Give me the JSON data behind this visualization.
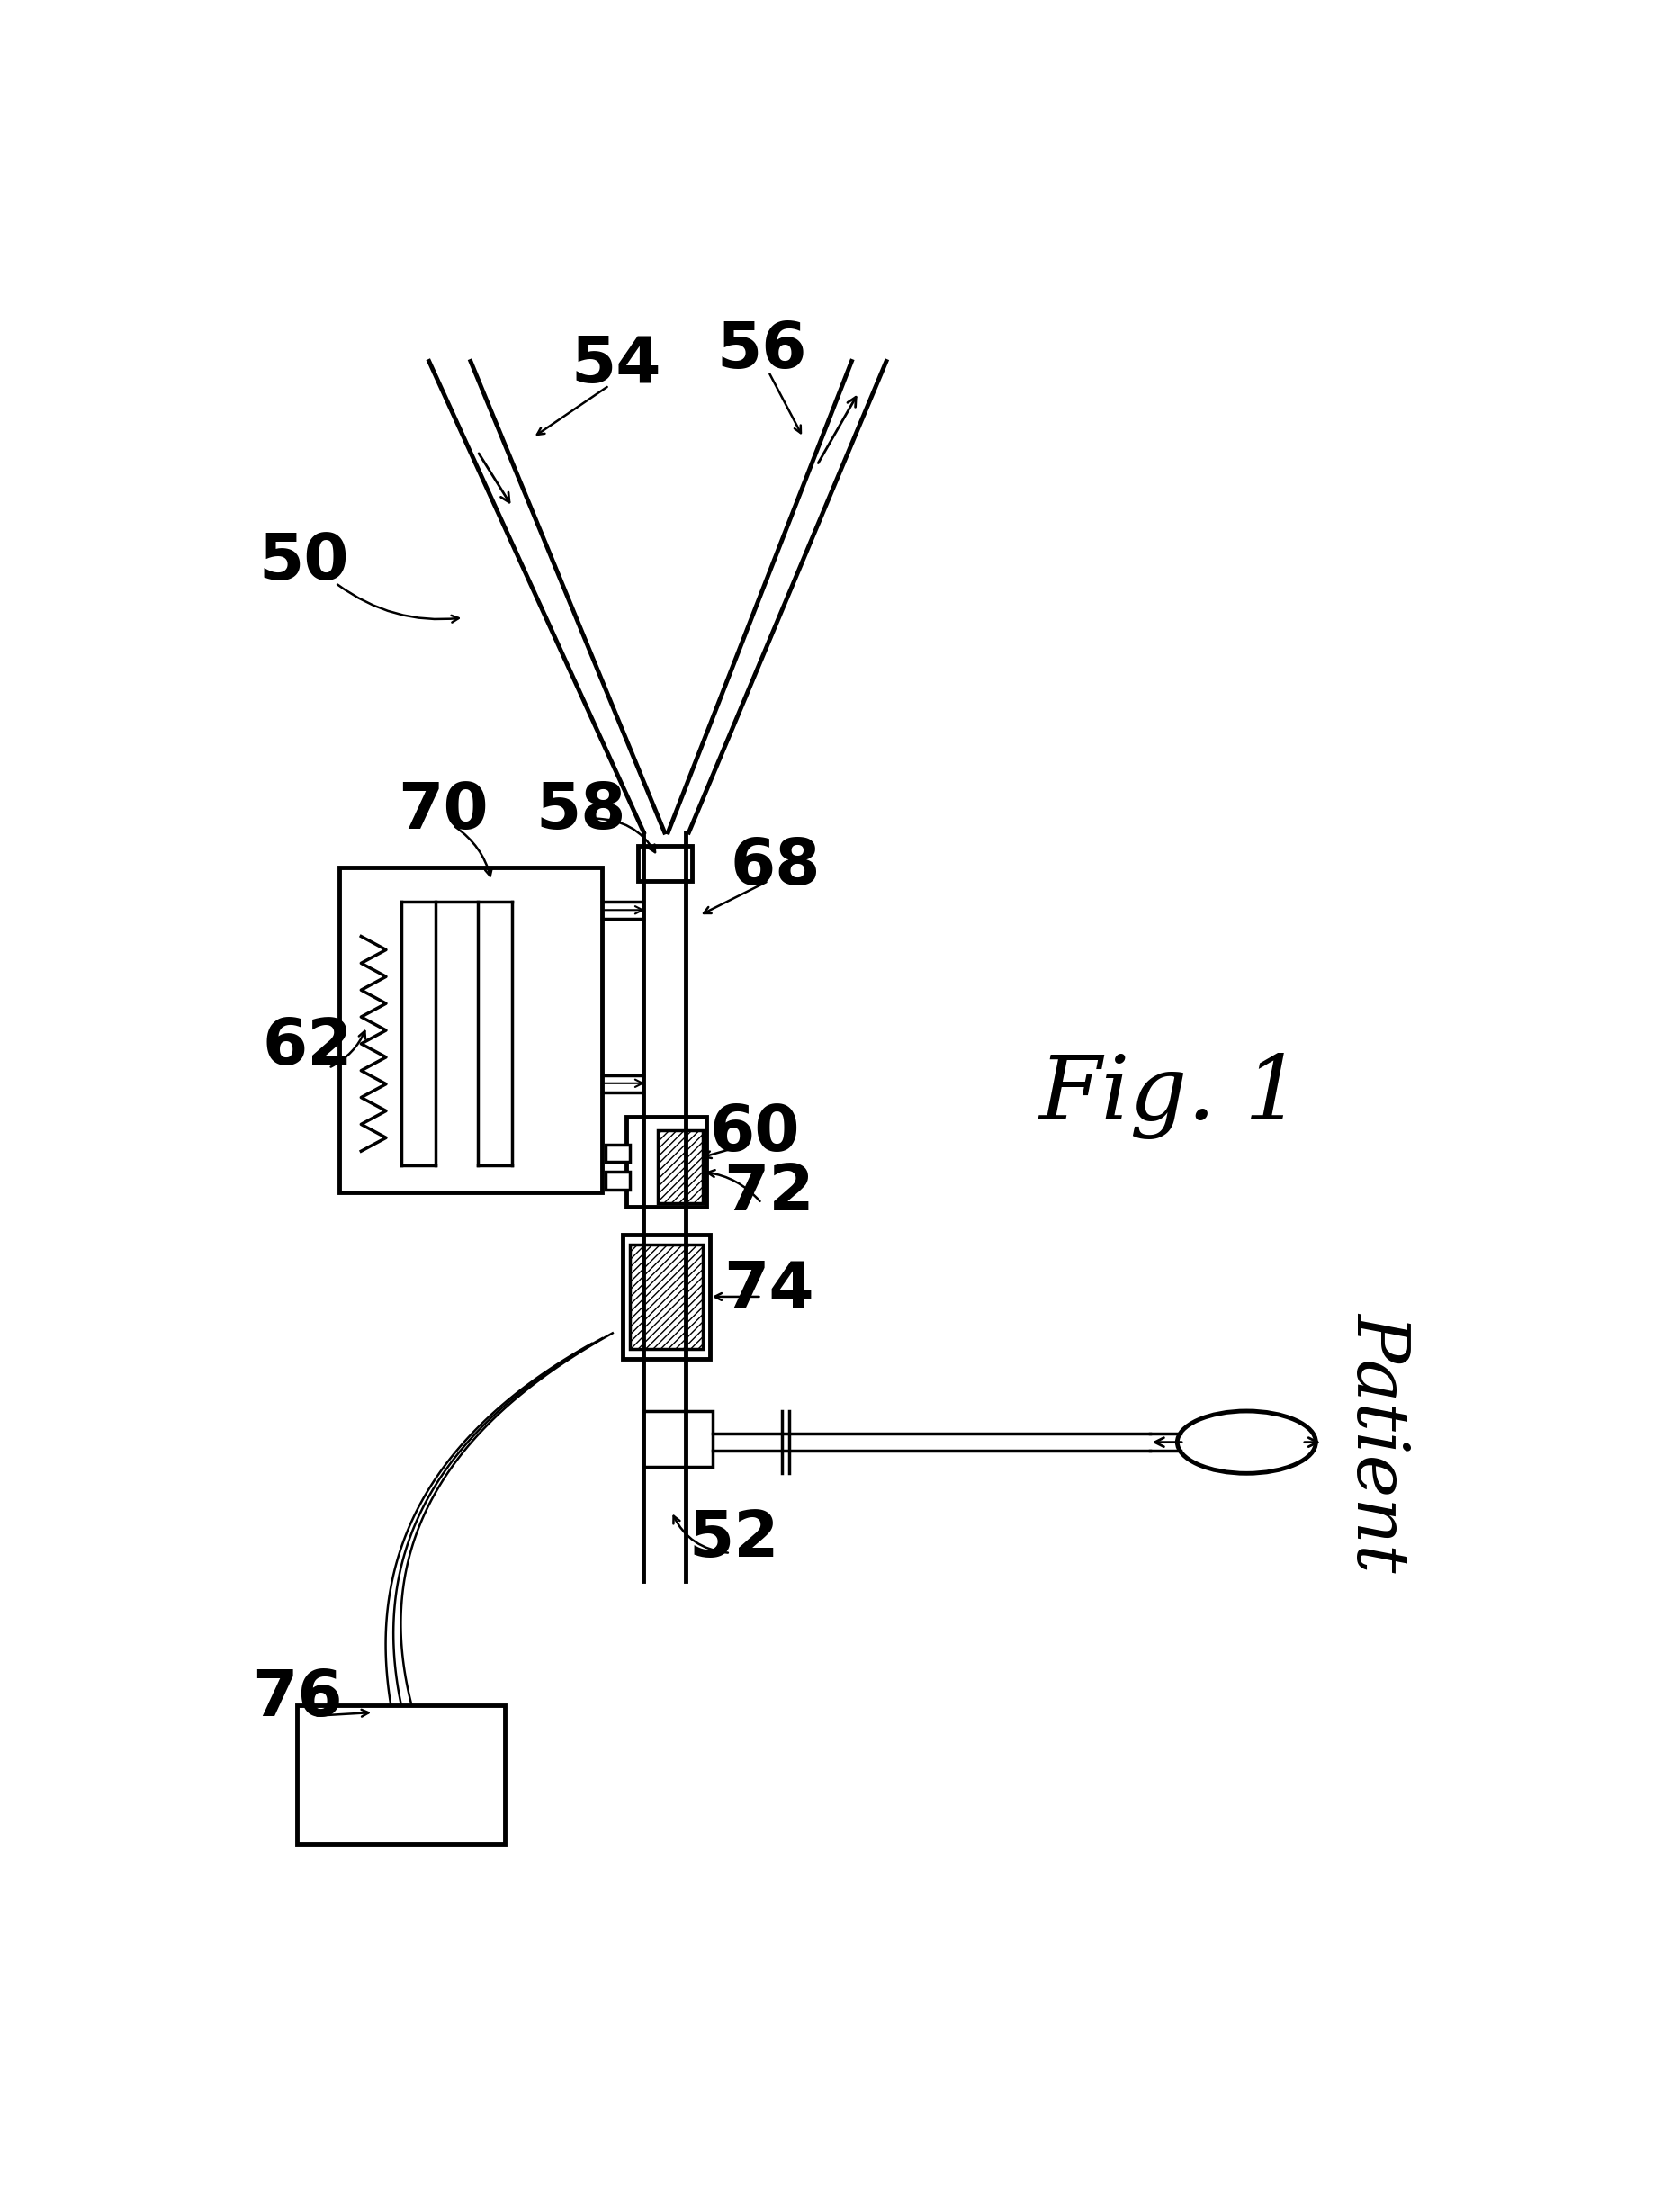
{
  "bg_color": "#ffffff",
  "line_color": "#000000",
  "fig_width": 18.67,
  "fig_height": 24.47,
  "title": "Fig. 1",
  "lw": 2.5,
  "lw_thick": 3.5,
  "lw_thin": 1.8
}
